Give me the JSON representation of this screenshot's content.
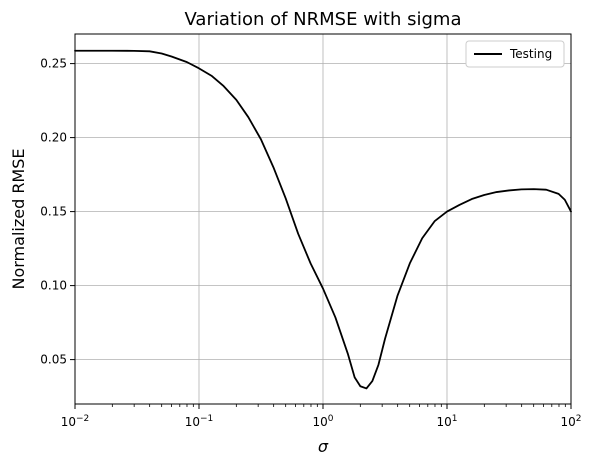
{
  "chart_data": {
    "type": "line",
    "title": "Variation of NRMSE with sigma",
    "xlabel": "σ",
    "ylabel": "Normalized RMSE",
    "xscale": "log",
    "xlim": [
      0.01,
      100
    ],
    "ylim": [
      0.02,
      0.27
    ],
    "grid": true,
    "legend_position": "top-right",
    "x_ticks": [
      {
        "value": 0.01,
        "base": "10",
        "exp": "−2"
      },
      {
        "value": 0.1,
        "base": "10",
        "exp": "−1"
      },
      {
        "value": 1,
        "base": "10",
        "exp": "0"
      },
      {
        "value": 10,
        "base": "10",
        "exp": "1"
      },
      {
        "value": 100,
        "base": "10",
        "exp": "2"
      }
    ],
    "y_ticks": [
      {
        "value": 0.05,
        "label": "0.05"
      },
      {
        "value": 0.1,
        "label": "0.10"
      },
      {
        "value": 0.15,
        "label": "0.15"
      },
      {
        "value": 0.2,
        "label": "0.20"
      },
      {
        "value": 0.25,
        "label": "0.25"
      }
    ],
    "series": [
      {
        "name": "Testing",
        "color": "#000000",
        "points": [
          [
            0.01,
            0.2587
          ],
          [
            0.02,
            0.2587
          ],
          [
            0.03,
            0.2586
          ],
          [
            0.04,
            0.2583
          ],
          [
            0.05,
            0.2568
          ],
          [
            0.06,
            0.2548
          ],
          [
            0.08,
            0.251
          ],
          [
            0.1,
            0.2468
          ],
          [
            0.126,
            0.2418
          ],
          [
            0.158,
            0.2348
          ],
          [
            0.2,
            0.2255
          ],
          [
            0.25,
            0.2138
          ],
          [
            0.316,
            0.1988
          ],
          [
            0.398,
            0.18
          ],
          [
            0.5,
            0.159
          ],
          [
            0.631,
            0.135
          ],
          [
            0.794,
            0.115
          ],
          [
            1.0,
            0.098
          ],
          [
            1.259,
            0.0785
          ],
          [
            1.585,
            0.054
          ],
          [
            1.8,
            0.038
          ],
          [
            2.0,
            0.032
          ],
          [
            2.24,
            0.0305
          ],
          [
            2.5,
            0.0355
          ],
          [
            2.8,
            0.0465
          ],
          [
            3.162,
            0.064
          ],
          [
            3.981,
            0.093
          ],
          [
            5.012,
            0.115
          ],
          [
            6.31,
            0.132
          ],
          [
            7.943,
            0.1435
          ],
          [
            10.0,
            0.15
          ],
          [
            12.59,
            0.1545
          ],
          [
            15.85,
            0.1585
          ],
          [
            19.95,
            0.1612
          ],
          [
            25.12,
            0.1632
          ],
          [
            31.62,
            0.1643
          ],
          [
            39.81,
            0.165
          ],
          [
            50.12,
            0.1652
          ],
          [
            63.1,
            0.1648
          ],
          [
            79.43,
            0.162
          ],
          [
            89.13,
            0.158
          ],
          [
            100.0,
            0.15
          ]
        ]
      }
    ]
  }
}
